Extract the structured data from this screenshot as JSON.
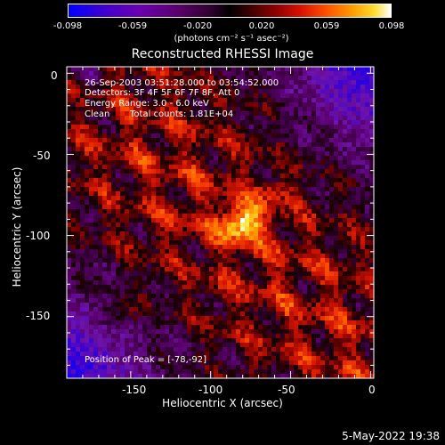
{
  "colorbar": {
    "tick_labels": [
      "-0.098",
      "-0.059",
      "-0.020",
      "0.020",
      "0.059",
      "0.098"
    ],
    "units": "(photons cm⁻² s⁻¹ asec⁻²)"
  },
  "title": "Reconstructed RHESSI Image",
  "annotation": {
    "line1": "26-Sep-2003 03:51:28.000 to 03:54:52.000",
    "line2": "Detectors: 3F 4F 5F 6F 7F 8F, Att 0",
    "line3": "Energy Range: 3.0 - 6.0 keV",
    "line4_a": "Clean",
    "line4_b": "Total counts: 1.81E+04"
  },
  "peak_label": "Position of Peak = [-78,-92]",
  "axes": {
    "xlabel": "Heliocentric X (arcsec)",
    "ylabel": "Heliocentric Y (arcsec)",
    "x_ticks": [
      "-150",
      "-100",
      "-50",
      "0"
    ],
    "y_ticks": [
      "0",
      "-50",
      "-100",
      "-150"
    ],
    "xlim": [
      -190,
      2
    ],
    "ylim": [
      -188,
      4
    ]
  },
  "footer_date": "5-May-2022 19:38",
  "colors": {
    "background": "#000000",
    "foreground": "#ffffff"
  }
}
